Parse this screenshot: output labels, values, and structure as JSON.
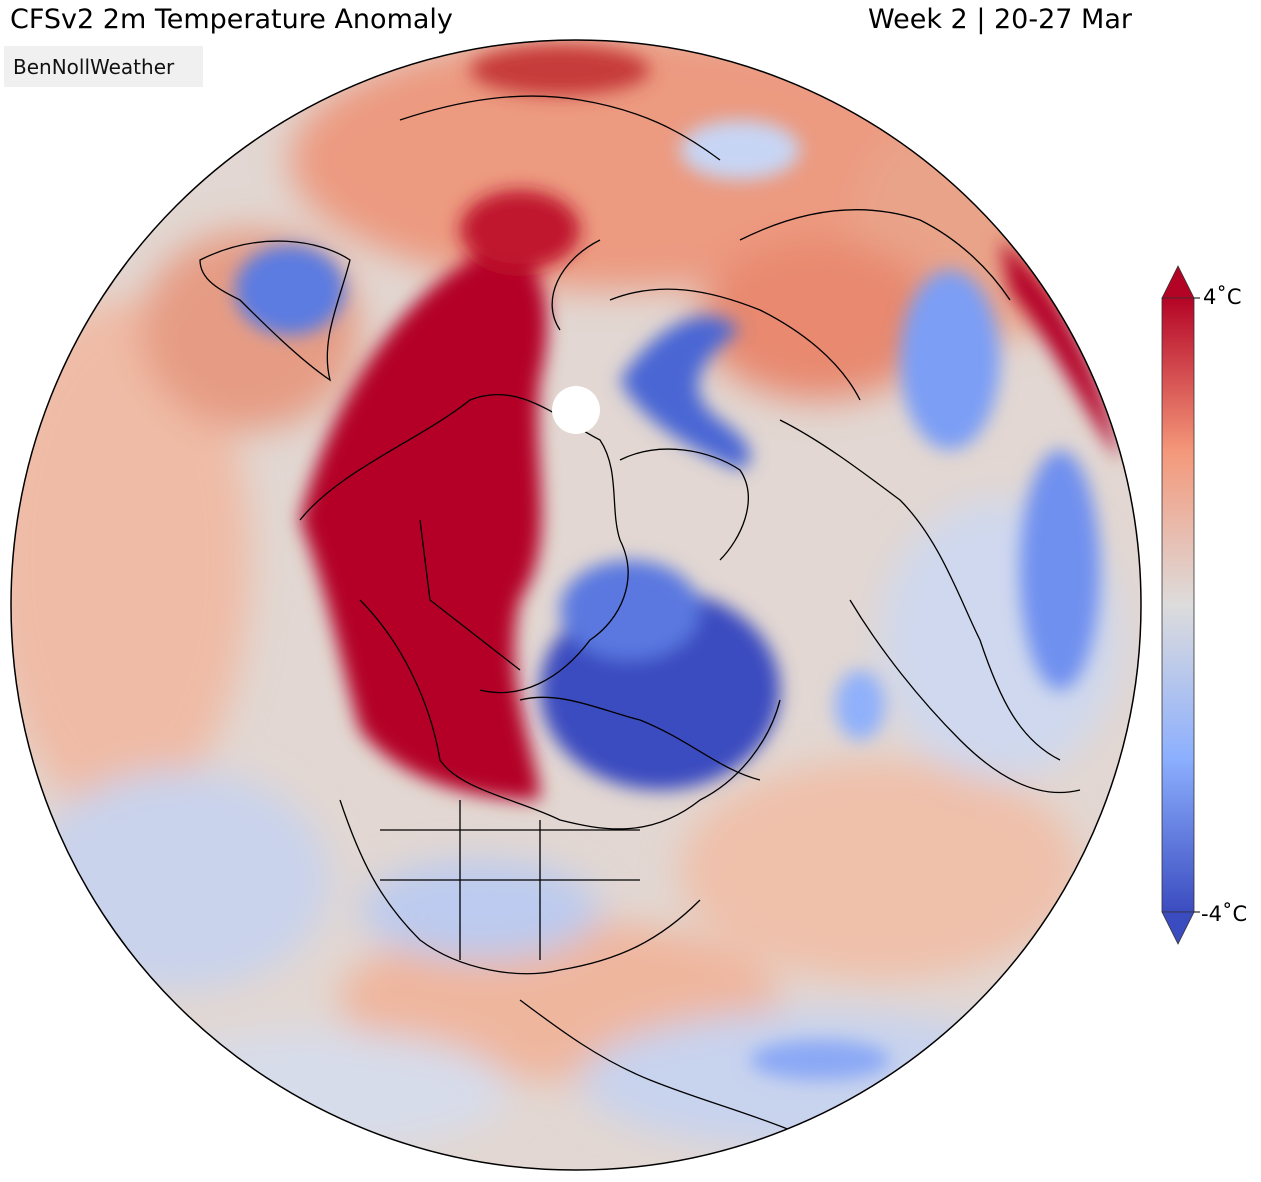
{
  "header": {
    "title": "CFSv2 2m Temperature Anomaly",
    "period": "Week 2 | 20-27 Mar"
  },
  "watermark": "BenNollWeather",
  "colorbar": {
    "max_label": "4˚C",
    "min_label": "-4˚C",
    "max_value": 4,
    "min_value": -4,
    "cold_color": "#3b4cc0",
    "neutral_color": "#dddcdc",
    "warm_color": "#b40426"
  },
  "map": {
    "projection": "orthographic",
    "variable": "2m temperature anomaly"
  }
}
